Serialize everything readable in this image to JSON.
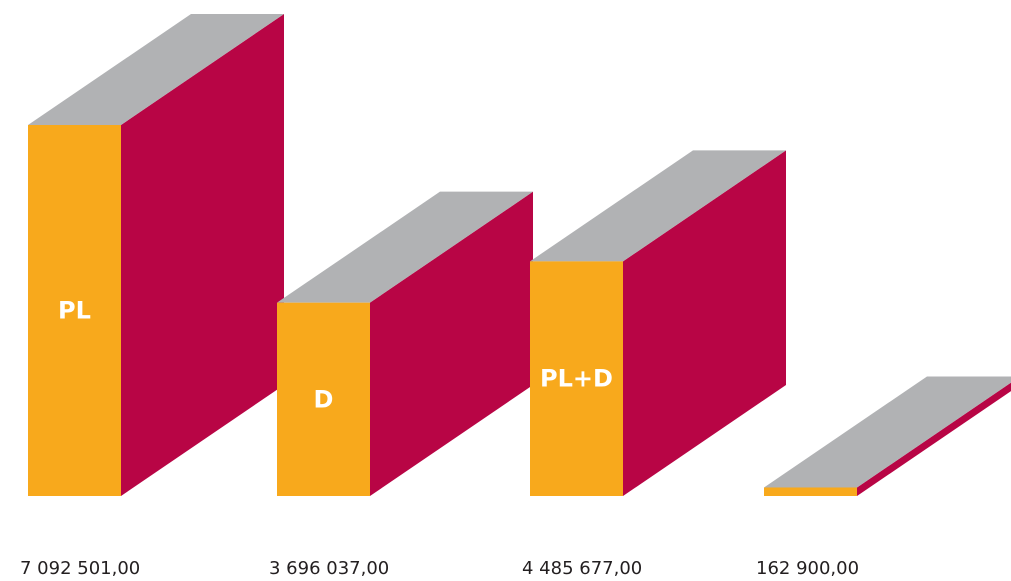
{
  "chart_data": {
    "type": "bar",
    "categories": [
      "PL",
      "D",
      "PL+D",
      ""
    ],
    "values": [
      7092501.0,
      3696037.0,
      4485677.0,
      162900.0
    ],
    "value_labels": [
      "7 092 501,00",
      "3 696 037,00",
      "4 485 677,00",
      "162 900,00"
    ],
    "title": "",
    "xlabel": "",
    "ylabel": "",
    "grid": false,
    "legend": "none",
    "style": "3d-block"
  },
  "colors": {
    "front": "#f8a91c",
    "side": "#b80545",
    "top": "#b1b2b4",
    "value_text": "#231f20",
    "bar_label_text": "#ffffff"
  }
}
